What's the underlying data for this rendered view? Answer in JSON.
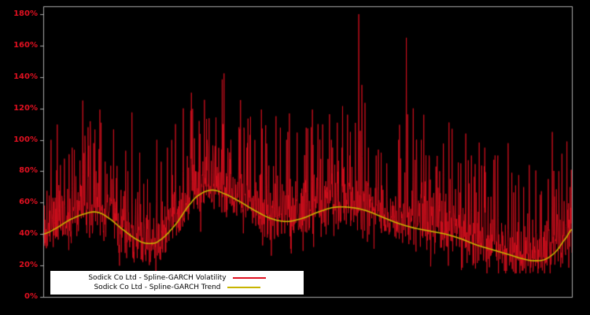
{
  "chart_data": {
    "type": "line",
    "title": "",
    "xlabel": "",
    "ylabel": "",
    "ylim": [
      0,
      185
    ],
    "yticks": [
      0,
      20,
      40,
      60,
      80,
      100,
      120,
      140,
      160,
      180
    ],
    "ytick_labels": [
      "0%",
      "20%",
      "40%",
      "60%",
      "80%",
      "100%",
      "120%",
      "140%",
      "160%",
      "180%"
    ],
    "tick_label_color": "#e01020",
    "axis_color": "#aaaaaa",
    "background": "#000000",
    "grid": false,
    "legend_position": "bottom-left",
    "legend": [
      {
        "label": "Sodick Co Ltd - Spline-GARCH Volatility",
        "color": "#e01020"
      },
      {
        "label": "Sodick Co Ltd - Spline-GARCH Trend",
        "color": "#c8b400"
      }
    ],
    "series": [
      {
        "name": "Sodick Co Ltd - Spline-GARCH Volatility",
        "color": "#e01020",
        "render": "noisy",
        "baseline": "trend",
        "noise": {
          "seed": 1337,
          "samples": 1700,
          "band_down": 12,
          "band_up": 8,
          "med_spike": 22,
          "big_spike": 70,
          "down_hair": 14,
          "min": 15,
          "max": 182
        },
        "spikes": [
          [
            0.015,
            100
          ],
          [
            0.04,
            88
          ],
          [
            0.055,
            95
          ],
          [
            0.075,
            125
          ],
          [
            0.085,
            108
          ],
          [
            0.1,
            80
          ],
          [
            0.13,
            75
          ],
          [
            0.16,
            80
          ],
          [
            0.19,
            72
          ],
          [
            0.215,
            100
          ],
          [
            0.235,
            95
          ],
          [
            0.25,
            110
          ],
          [
            0.265,
            120
          ],
          [
            0.28,
            130
          ],
          [
            0.295,
            112
          ],
          [
            0.31,
            100
          ],
          [
            0.325,
            96
          ],
          [
            0.34,
            110
          ],
          [
            0.355,
            100
          ],
          [
            0.37,
            108
          ],
          [
            0.385,
            95
          ],
          [
            0.4,
            90
          ],
          [
            0.42,
            100
          ],
          [
            0.44,
            115
          ],
          [
            0.46,
            100
          ],
          [
            0.48,
            90
          ],
          [
            0.5,
            95
          ],
          [
            0.52,
            110
          ],
          [
            0.545,
            100
          ],
          [
            0.565,
            95
          ],
          [
            0.58,
            90
          ],
          [
            0.597,
            180
          ],
          [
            0.615,
            95
          ],
          [
            0.63,
            90
          ],
          [
            0.65,
            85
          ],
          [
            0.672,
            100
          ],
          [
            0.687,
            165
          ],
          [
            0.7,
            120
          ],
          [
            0.715,
            100
          ],
          [
            0.73,
            90
          ],
          [
            0.75,
            80
          ],
          [
            0.77,
            75
          ],
          [
            0.79,
            85
          ],
          [
            0.81,
            90
          ],
          [
            0.835,
            95
          ],
          [
            0.86,
            90
          ],
          [
            0.88,
            70
          ],
          [
            0.9,
            60
          ],
          [
            0.92,
            55
          ],
          [
            0.94,
            65
          ],
          [
            0.955,
            75
          ],
          [
            0.963,
            105
          ],
          [
            0.975,
            80
          ],
          [
            0.99,
            60
          ]
        ]
      },
      {
        "name": "Sodick Co Ltd - Spline-GARCH Trend",
        "color": "#c8b400",
        "render": "smooth",
        "x": [
          0,
          0.02,
          0.05,
          0.08,
          0.1,
          0.12,
          0.15,
          0.18,
          0.2,
          0.22,
          0.25,
          0.28,
          0.3,
          0.32,
          0.34,
          0.37,
          0.4,
          0.43,
          0.46,
          0.49,
          0.52,
          0.55,
          0.58,
          0.61,
          0.64,
          0.67,
          0.7,
          0.73,
          0.76,
          0.79,
          0.82,
          0.85,
          0.88,
          0.91,
          0.93,
          0.95,
          0.97,
          0.99,
          1.0
        ],
        "y": [
          40,
          43,
          49,
          53,
          54,
          51,
          43,
          36,
          34,
          36,
          46,
          60,
          66,
          68,
          66,
          61,
          55,
          50,
          48,
          50,
          54,
          57,
          57,
          55,
          51,
          47,
          44,
          42,
          40,
          37,
          33,
          30,
          27,
          24,
          23,
          24,
          29,
          38,
          43
        ]
      }
    ]
  }
}
